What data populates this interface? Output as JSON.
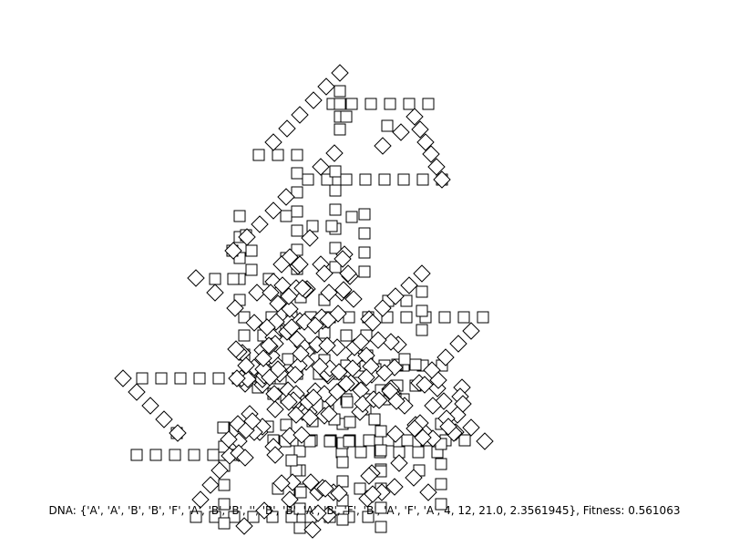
{
  "caption": "DNA: {'A', 'A', 'B', 'B', 'F', 'A', 'B', 'B', '', 'B', 'B', 'A', 'B', 'F', 'B', 'A', 'F', 'A', 4, 12, 21.0, 2.3561945}, Fitness: 0.561063",
  "shape_kinds": [
    "square",
    "diamond"
  ],
  "colors": {
    "background": "#ffffff",
    "stroke": "#000000",
    "fill": "#ffffff",
    "text": "#000000"
  }
}
